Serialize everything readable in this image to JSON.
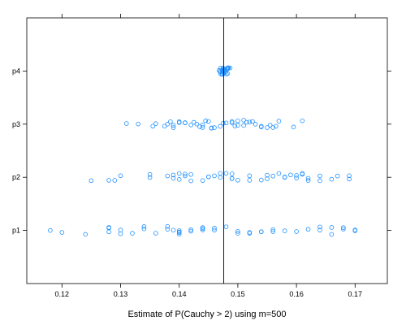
{
  "chart_data": {
    "type": "scatter",
    "title": "",
    "xlabel": "Estimate of P(Cauchy > 2) using m=500",
    "ylabel": "",
    "xlim": [
      0.114,
      0.1755
    ],
    "x_ticks": [
      0.12,
      0.13,
      0.14,
      0.15,
      0.16,
      0.17
    ],
    "x_tick_labels": [
      "0.12",
      "0.13",
      "0.14",
      "0.15",
      "0.16",
      "0.17"
    ],
    "categories": [
      "p1",
      "p2",
      "p3",
      "p4"
    ],
    "reference_line": {
      "x": 0.1476
    },
    "grid": false,
    "marker": "open-circle",
    "jitter": "vertical",
    "series_color": "#1e90ff",
    "line_color": "#000000",
    "series": [
      {
        "name": "p1",
        "values": [
          0.118,
          0.12,
          0.124,
          0.128,
          0.128,
          0.128,
          0.13,
          0.13,
          0.132,
          0.134,
          0.134,
          0.136,
          0.138,
          0.139,
          0.14,
          0.14,
          0.14,
          0.14,
          0.142,
          0.142,
          0.144,
          0.144,
          0.144,
          0.146,
          0.148,
          0.15,
          0.15,
          0.152,
          0.152,
          0.154,
          0.154,
          0.156,
          0.156,
          0.158,
          0.162,
          0.164,
          0.164,
          0.166,
          0.166,
          0.168,
          0.168,
          0.17,
          0.17,
          0.138,
          0.146,
          0.16
        ]
      },
      {
        "name": "p2",
        "values": [
          0.125,
          0.128,
          0.129,
          0.13,
          0.135,
          0.135,
          0.138,
          0.139,
          0.139,
          0.14,
          0.14,
          0.141,
          0.141,
          0.142,
          0.142,
          0.144,
          0.145,
          0.145,
          0.146,
          0.147,
          0.147,
          0.149,
          0.149,
          0.149,
          0.152,
          0.152,
          0.154,
          0.155,
          0.155,
          0.156,
          0.157,
          0.158,
          0.158,
          0.16,
          0.16,
          0.161,
          0.161,
          0.162,
          0.162,
          0.164,
          0.164,
          0.166,
          0.167,
          0.169,
          0.169,
          0.148,
          0.15,
          0.159
        ]
      },
      {
        "name": "p3",
        "values": [
          0.131,
          0.133,
          0.1355,
          0.136,
          0.1375,
          0.138,
          0.1385,
          0.139,
          0.139,
          0.14,
          0.14,
          0.141,
          0.141,
          0.142,
          0.1425,
          0.143,
          0.1435,
          0.144,
          0.144,
          0.1445,
          0.145,
          0.1455,
          0.146,
          0.147,
          0.1475,
          0.148,
          0.149,
          0.149,
          0.1495,
          0.15,
          0.15,
          0.151,
          0.151,
          0.1515,
          0.152,
          0.1525,
          0.153,
          0.154,
          0.154,
          0.155,
          0.156,
          0.1565,
          0.157,
          0.1595,
          0.161,
          0.1455,
          0.1555
        ]
      },
      {
        "name": "p4",
        "values": [
          0.147,
          0.1472,
          0.1474,
          0.1476,
          0.1478,
          0.148,
          0.1482,
          0.1473,
          0.1477,
          0.1481,
          0.1475,
          0.1479,
          0.1471,
          0.1483,
          0.1476,
          0.1474,
          0.1478,
          0.147,
          0.1482,
          0.1475,
          0.1477,
          0.1479,
          0.1473,
          0.1481,
          0.1476,
          0.1472,
          0.1484,
          0.1468,
          0.1486,
          0.1476
        ]
      }
    ]
  }
}
